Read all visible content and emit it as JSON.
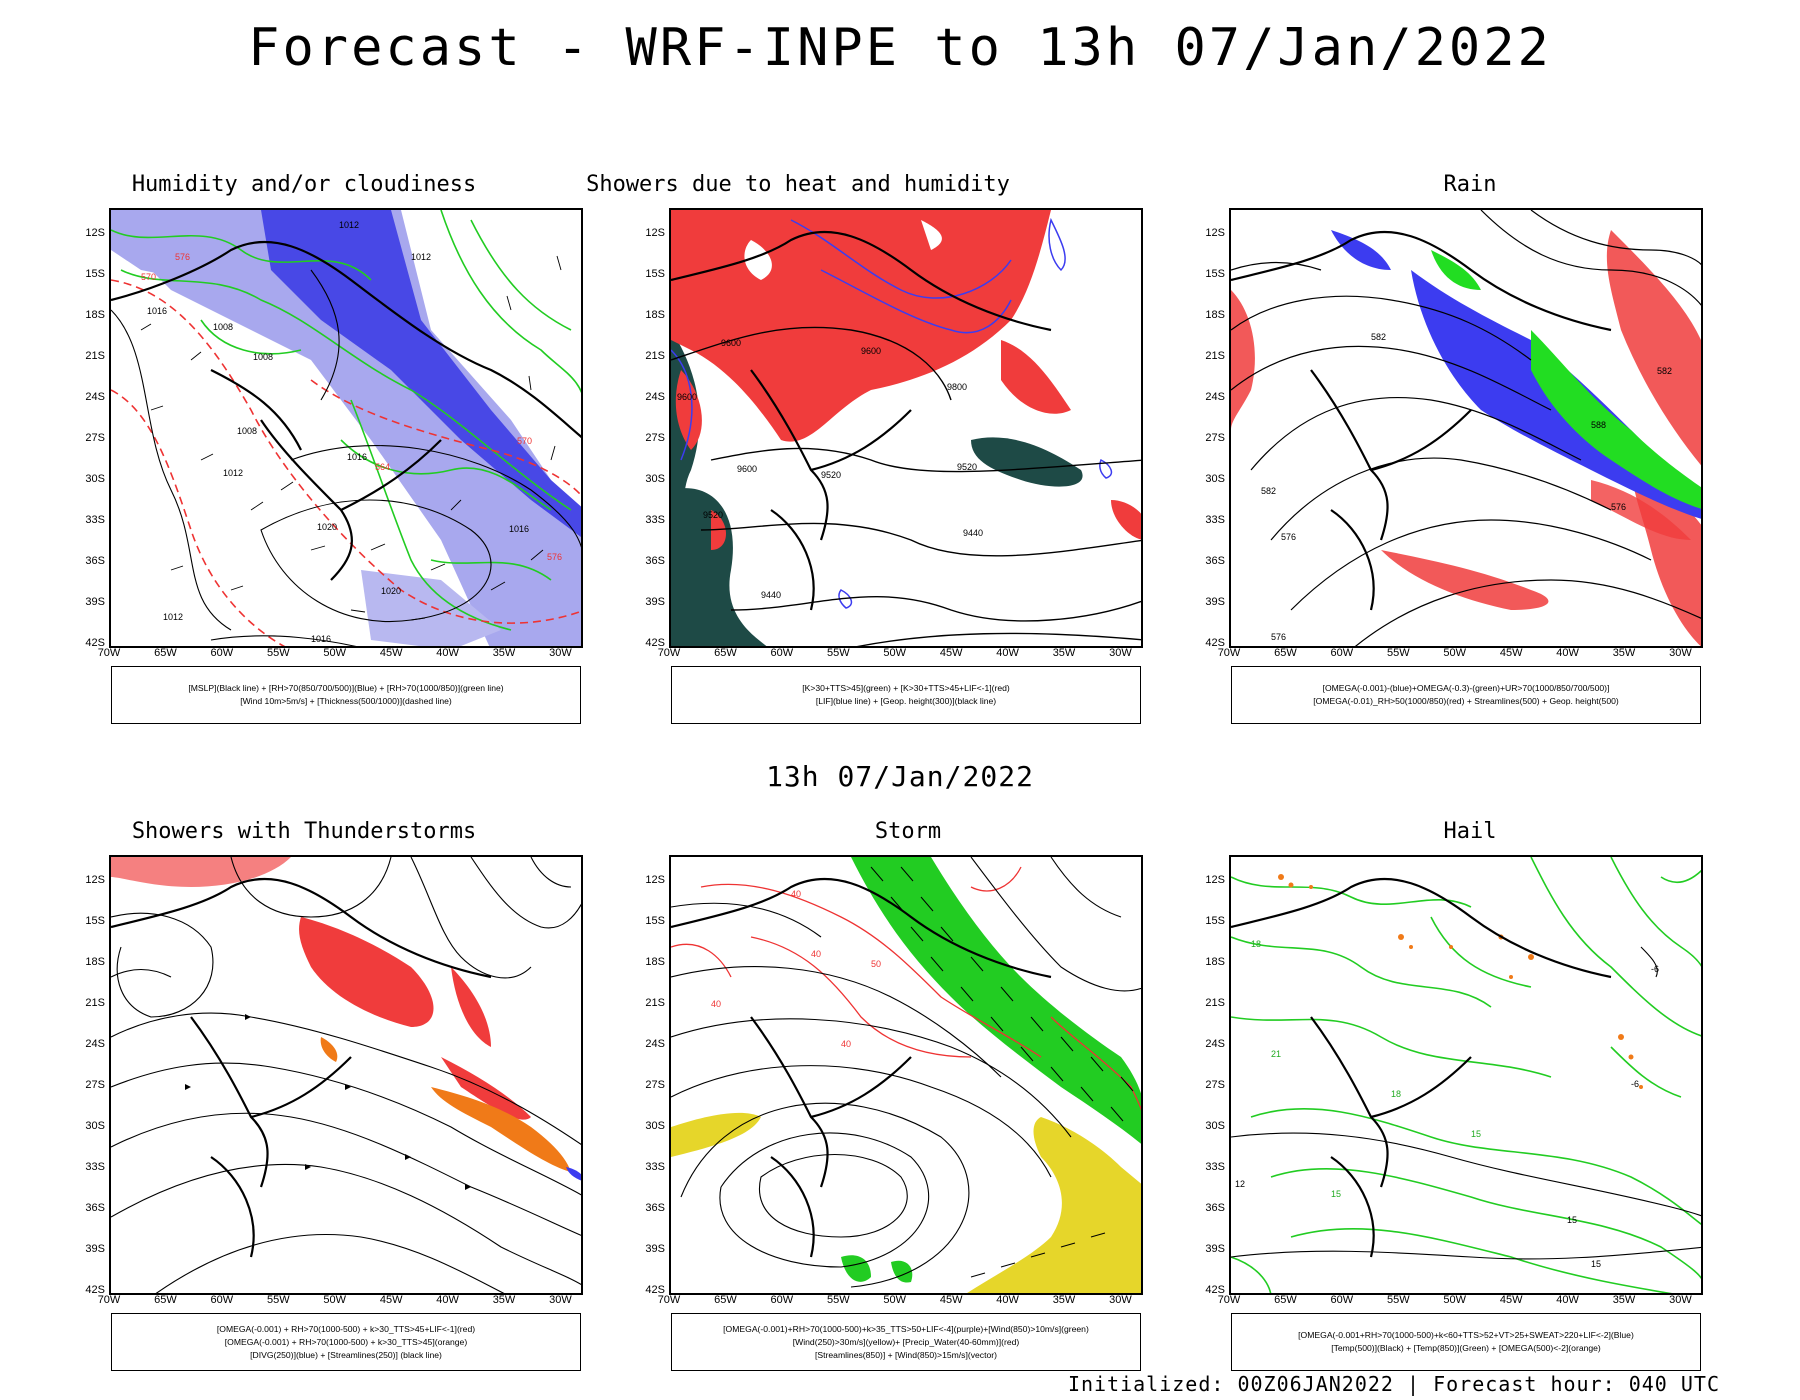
{
  "header": {
    "title": "Forecast - WRF-INPE to 13h 07/Jan/2022"
  },
  "mid_title": "13h 07/Jan/2022",
  "footer": "Initialized: 00Z06JAN2022 | Forecast hour: 040 UTC",
  "axes": {
    "lat_labels": [
      "12S",
      "15S",
      "18S",
      "21S",
      "24S",
      "27S",
      "30S",
      "33S",
      "36S",
      "39S",
      "42S"
    ],
    "lon_labels": [
      "70W",
      "65W",
      "60W",
      "55W",
      "50W",
      "45W",
      "40W",
      "35W",
      "30W"
    ]
  },
  "colors": {
    "red": "#f03c3c",
    "blue": "#3c3cf0",
    "lavender": "#a8a8ee",
    "green": "#22dd22",
    "dark_teal": "#1e4a46",
    "yellow": "#e6d62a",
    "orange": "#f07a18",
    "black": "#000000"
  },
  "panels": [
    {
      "title": "Humidity and/or cloudiness",
      "legend": [
        "[MSLP](Black line) + [RH>70(850/700/500)](Blue) + [RH>70(1000/850)](green line)",
        "[Wind 10m>5m/s] + [Thickness(500/1000)](dashed line)"
      ],
      "contour_labels": [
        "1012",
        "1012",
        "1008",
        "1008",
        "1016",
        "1008",
        "1012",
        "1016",
        "1020",
        "1016",
        "1020",
        "1012",
        "1016",
        "570",
        "576",
        "564",
        "570",
        "576"
      ]
    },
    {
      "title": "Showers due to heat and humidity",
      "legend": [
        "[K>30+TTS>45](green) + [K>30+TTS>45+LIF<-1](red)",
        "[LIF](blue line) + [Geop. height(300)](black line)"
      ],
      "contour_labels": [
        "9600",
        "9600",
        "9600",
        "9600",
        "9520",
        "9520",
        "9520",
        "9440",
        "9440",
        "9800"
      ]
    },
    {
      "title": "Rain",
      "legend": [
        "[OMEGA(-0.001)-(blue)+OMEGA(-0.3)-(green)+UR>70(1000/850/700/500)]",
        "[OMEGA(-0.01)_RH>50(1000/850)(red) + Streamlines(500) + Geop. height(500)"
      ],
      "contour_labels": [
        "582",
        "582",
        "576",
        "576",
        "582",
        "576",
        "588"
      ]
    },
    {
      "title": "Showers with Thunderstorms",
      "legend": [
        "[OMEGA(-0.001) + RH>70(1000-500) + k>30_TTS>45+LIF<-1](red)",
        "[OMEGA(-0.001) + RH>70(1000-500) + k>30_TTS>45](orange)",
        "[DIVG(250)](blue) + [Streamlines(250)] (black line)"
      ],
      "contour_labels": []
    },
    {
      "title": "Storm",
      "legend": [
        "[OMEGA(-0.001)+RH>70(1000-500)+k>35_TTS>50+LIF<-4](purple)+[Wind(850)>10m/s](green)",
        "[Wind(250)>30m/s](yellow)+ [Precip_Water(40-60mm)](red)",
        "[Streamlines(850)] + [Wind(850)>15m/s](vector)"
      ],
      "contour_labels": [
        "40",
        "40",
        "40",
        "50",
        "40"
      ]
    },
    {
      "title": "Hail",
      "legend": [
        "[OMEGA(-0.001+RH>70(1000-500)+k<60+TTS>52+VT>25+SWEAT>220+LIF<-2](Blue)",
        "[Temp(500)](Black) + [Temp(850)](Green) + [OMEGA(500)<-2](orange)",
        ""
      ],
      "contour_labels": [
        "-6",
        "-6",
        "12",
        "15",
        "15",
        "18",
        "15",
        "15",
        "21",
        "18"
      ]
    }
  ]
}
